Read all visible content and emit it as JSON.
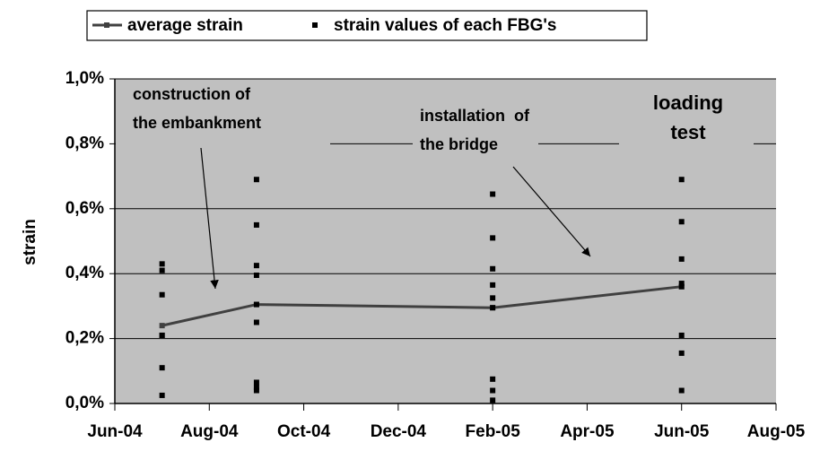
{
  "chart_data": {
    "type": "line",
    "y_label": "strain",
    "ylim": [
      0,
      1
    ],
    "yticks": [
      {
        "value": 0,
        "label": "0,0%"
      },
      {
        "value": 0.2,
        "label": "0,2%"
      },
      {
        "value": 0.4,
        "label": "0,4%"
      },
      {
        "value": 0.6,
        "label": "0,6%"
      },
      {
        "value": 0.8,
        "label": "0,8%"
      },
      {
        "value": 1,
        "label": "1,0%"
      }
    ],
    "xlim": [
      "Jun-04",
      "Aug-05"
    ],
    "xticks": [
      "Jun-04",
      "Aug-04",
      "Oct-04",
      "Dec-04",
      "Feb-05",
      "Apr-05",
      "Jun-05",
      "Aug-05"
    ],
    "grid": true,
    "background": "#c0c0c0",
    "series": [
      {
        "name": "average strain",
        "color": "#404040",
        "x": [
          "Jul-04",
          "Sep-04",
          "Feb-05",
          "Jun-05"
        ],
        "values": [
          0.24,
          0.305,
          0.295,
          0.36
        ]
      },
      {
        "name": "strain values of each FBG's",
        "color": "#000000",
        "marker": "square",
        "x": [
          "Jul-04",
          "Jul-04",
          "Jul-04",
          "Jul-04",
          "Jul-04",
          "Jul-04",
          "Jul-04",
          "Sep-04",
          "Sep-04",
          "Sep-04",
          "Sep-04",
          "Sep-04",
          "Sep-04",
          "Sep-04",
          "Sep-04",
          "Sep-04",
          "Feb-05",
          "Feb-05",
          "Feb-05",
          "Feb-05",
          "Feb-05",
          "Feb-05",
          "Feb-05",
          "Feb-05",
          "Feb-05",
          "Jun-05",
          "Jun-05",
          "Jun-05",
          "Jun-05",
          "Jun-05",
          "Jun-05",
          "Jun-05",
          "Jun-05"
        ],
        "values": [
          0.43,
          0.41,
          0.335,
          0.21,
          0.21,
          0.11,
          0.025,
          0.69,
          0.55,
          0.425,
          0.395,
          0.305,
          0.25,
          0.065,
          0.05,
          0.04,
          0.645,
          0.51,
          0.415,
          0.365,
          0.325,
          0.295,
          0.075,
          0.04,
          0.01,
          0.69,
          0.56,
          0.445,
          0.37,
          0.36,
          0.21,
          0.155,
          0.04
        ]
      }
    ],
    "annotations": [
      {
        "lines": [
          "construction of",
          "the embankment"
        ]
      },
      {
        "lines": [
          "installation  of",
          "the bridge"
        ]
      },
      {
        "lines": [
          "loading",
          "test"
        ]
      }
    ]
  }
}
